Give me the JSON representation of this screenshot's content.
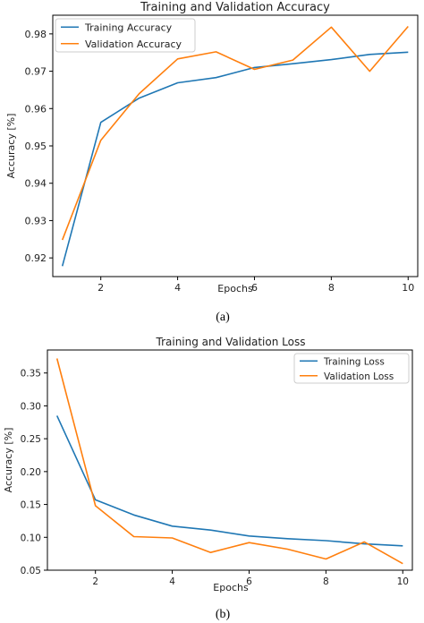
{
  "chart_data": [
    {
      "type": "line",
      "title": "Training and Validation Accuracy",
      "xlabel": "Epochs",
      "ylabel": "Accuracy [%]",
      "caption": "(a)",
      "x": [
        1,
        2,
        3,
        4,
        5,
        6,
        7,
        8,
        9,
        10
      ],
      "xlim": [
        0.75,
        10.25
      ],
      "ylim": [
        0.915,
        0.985
      ],
      "xticks": [
        "2",
        "4",
        "6",
        "8",
        "10"
      ],
      "xtick_values": [
        2,
        4,
        6,
        8,
        10
      ],
      "yticks": [
        "0.92",
        "0.93",
        "0.94",
        "0.95",
        "0.96",
        "0.97",
        "0.98"
      ],
      "ytick_values": [
        0.92,
        0.93,
        0.94,
        0.95,
        0.96,
        0.97,
        0.98
      ],
      "legend_position": "top-left",
      "grid": false,
      "series": [
        {
          "name": "Training Accuracy",
          "color": "#1f77b4",
          "values": [
            0.9178,
            0.9563,
            0.9628,
            0.9669,
            0.9683,
            0.971,
            0.972,
            0.9731,
            0.9745,
            0.9751
          ]
        },
        {
          "name": "Validation Accuracy",
          "color": "#ff7f0e",
          "values": [
            0.9248,
            0.9515,
            0.964,
            0.9733,
            0.9752,
            0.9705,
            0.973,
            0.9818,
            0.97,
            0.982
          ]
        }
      ]
    },
    {
      "type": "line",
      "title": "Training and Validation Loss",
      "xlabel": "Epochs",
      "ylabel": "Accuracy [%]",
      "caption": "(b)",
      "x": [
        1,
        2,
        3,
        4,
        5,
        6,
        7,
        8,
        9,
        10
      ],
      "xlim": [
        0.75,
        10.25
      ],
      "ylim": [
        0.05,
        0.385
      ],
      "xticks": [
        "2",
        "4",
        "6",
        "8",
        "10"
      ],
      "xtick_values": [
        2,
        4,
        6,
        8,
        10
      ],
      "yticks": [
        "0.05",
        "0.10",
        "0.15",
        "0.20",
        "0.25",
        "0.30",
        "0.35"
      ],
      "ytick_values": [
        0.05,
        0.1,
        0.15,
        0.2,
        0.25,
        0.3,
        0.35
      ],
      "legend_position": "top-right",
      "grid": false,
      "series": [
        {
          "name": "Training Loss",
          "color": "#1f77b4",
          "values": [
            0.285,
            0.157,
            0.134,
            0.117,
            0.111,
            0.102,
            0.098,
            0.095,
            0.09,
            0.087
          ]
        },
        {
          "name": "Validation Loss",
          "color": "#ff7f0e",
          "values": [
            0.372,
            0.148,
            0.101,
            0.099,
            0.077,
            0.092,
            0.082,
            0.067,
            0.093,
            0.06
          ]
        }
      ]
    }
  ]
}
